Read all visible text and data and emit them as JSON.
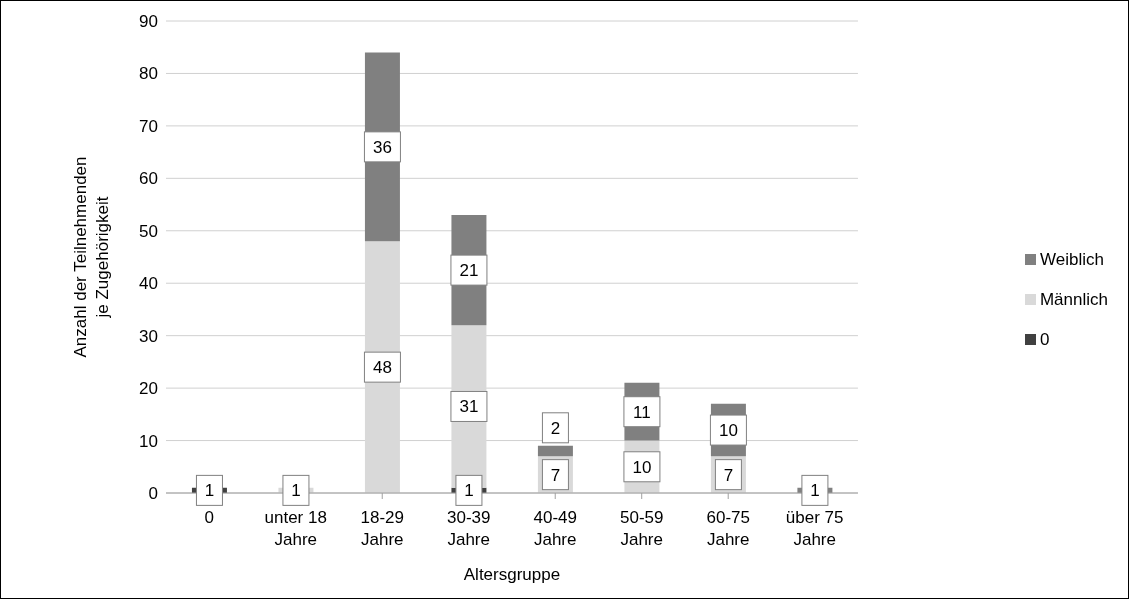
{
  "chart_data": {
    "type": "bar",
    "stacked": true,
    "xlabel": "Altersgruppe",
    "ylabel": "Anzahl der Teilnehmenden\nje Zugehörigkeit",
    "categories": [
      "0",
      "unter 18\nJahre",
      "18-29\nJahre",
      "30-39\nJahre",
      "40-49\nJahre",
      "50-59\nJahre",
      "60-75\nJahre",
      "über 75\nJahre"
    ],
    "series": [
      {
        "name": "0",
        "color": "#404040",
        "values": [
          1,
          null,
          null,
          1,
          null,
          null,
          null,
          null
        ]
      },
      {
        "name": "Männlich",
        "color": "#d9d9d9",
        "values": [
          null,
          1,
          48,
          31,
          7,
          10,
          7,
          null
        ]
      },
      {
        "name": "Weiblich",
        "color": "#808080",
        "values": [
          null,
          null,
          36,
          21,
          2,
          11,
          10,
          1
        ]
      }
    ],
    "ylim": [
      0,
      90
    ],
    "yticks": [
      0,
      10,
      20,
      30,
      40,
      50,
      60,
      70,
      80,
      90
    ],
    "grid": "y",
    "legend": "right",
    "data_labels": true
  }
}
